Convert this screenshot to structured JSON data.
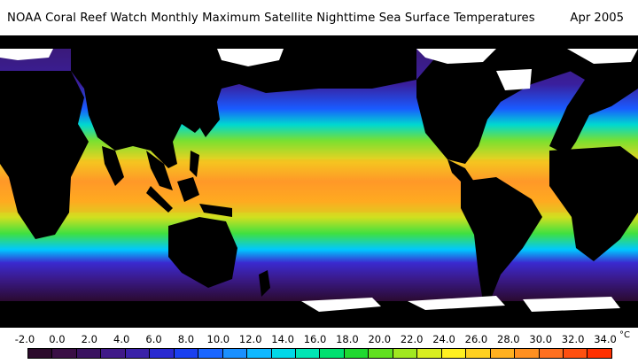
{
  "header": {
    "title": "NOAA Coral Reef Watch Monthly Maximum Satellite Nighttime Sea Surface Temperatures",
    "date": "Apr 2005"
  },
  "legend": {
    "unit": "°C",
    "ticks": [
      "-2.0",
      "0.0",
      "2.0",
      "4.0",
      "6.0",
      "8.0",
      "10.0",
      "12.0",
      "14.0",
      "16.0",
      "18.0",
      "20.0",
      "22.0",
      "24.0",
      "26.0",
      "28.0",
      "30.0",
      "32.0",
      "34.0"
    ],
    "colors": [
      "#2b0a2b",
      "#3a0f45",
      "#3a1360",
      "#401a88",
      "#3a22a8",
      "#2a2ad0",
      "#1a40f0",
      "#1a66ff",
      "#1a90ff",
      "#10b8ff",
      "#00d8e8",
      "#00e6b4",
      "#00e070",
      "#20d830",
      "#60e020",
      "#a0e820",
      "#d8ee20",
      "#fff020",
      "#ffd020",
      "#ffb020",
      "#ff9020",
      "#ff7020",
      "#ff5010",
      "#ff3000"
    ]
  },
  "map": {
    "land_color": "#000000",
    "ice_color": "#ffffff",
    "ocean_gradient": [
      {
        "lat": 90,
        "color": "#3a1a7a"
      },
      {
        "lat": 60,
        "color": "#3a1f9c"
      },
      {
        "lat": 45,
        "color": "#1a5aff"
      },
      {
        "lat": 35,
        "color": "#00d8d0"
      },
      {
        "lat": 25,
        "color": "#7ae030"
      },
      {
        "lat": 12,
        "color": "#f4d020"
      },
      {
        "lat": 0,
        "color": "#ff9a2a"
      },
      {
        "lat": -12,
        "color": "#ffb020"
      },
      {
        "lat": -22,
        "color": "#d0e020"
      },
      {
        "lat": -32,
        "color": "#40e040"
      },
      {
        "lat": -42,
        "color": "#00c8ff"
      },
      {
        "lat": -50,
        "color": "#3a2ad0"
      },
      {
        "lat": -60,
        "color": "#3a1a8a"
      },
      {
        "lat": -90,
        "color": "#2a0a30"
      }
    ]
  }
}
